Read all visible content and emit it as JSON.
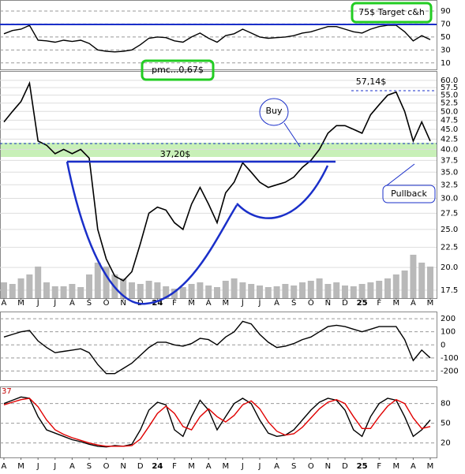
{
  "chart_data": [
    {
      "type": "line",
      "annotation": "75$ Target c&h",
      "color": "#000000",
      "x": [
        0,
        0.5,
        1,
        1.5,
        2,
        2.5,
        3,
        3.5,
        4,
        4.5,
        5,
        5.5,
        6,
        6.5,
        7,
        7.5,
        8,
        8.5,
        9,
        9.5,
        10,
        10.5,
        11,
        11.5,
        12,
        12.5,
        13,
        13.5,
        14,
        14.5,
        15,
        15.5,
        16,
        16.5,
        17,
        17.5,
        18,
        18.5,
        19,
        19.5,
        20,
        20.5,
        21,
        21.5,
        22,
        22.5,
        23,
        23.5,
        24,
        24.5,
        25
      ],
      "values": [
        55,
        60,
        62,
        68,
        45,
        44,
        42,
        45,
        43,
        45,
        40,
        30,
        28,
        27,
        28,
        30,
        38,
        48,
        50,
        49,
        44,
        42,
        50,
        56,
        48,
        42,
        52,
        55,
        62,
        56,
        50,
        48,
        49,
        50,
        52,
        56,
        58,
        62,
        66,
        66,
        62,
        58,
        56,
        62,
        66,
        68,
        68,
        58,
        44,
        52,
        46
      ],
      "xlim": [
        -0.23,
        25.37
      ],
      "ylim": [
        0,
        107
      ],
      "yticks": [
        90,
        70,
        50,
        30,
        10
      ]
    },
    {
      "type": "line",
      "log": true,
      "grid": true,
      "color": "#000000",
      "volume_color": "#b9b9b9",
      "annotations": [
        "pmc...0,67$",
        "Buy",
        "37,20$",
        "57,14$",
        "Pullback"
      ],
      "x": [
        0,
        0.5,
        1,
        1.5,
        2,
        2.5,
        3,
        3.5,
        4,
        4.5,
        5,
        5.5,
        6,
        6.5,
        7,
        7.5,
        8,
        8.5,
        9,
        9.5,
        10,
        10.5,
        11,
        11.5,
        12,
        12.5,
        13,
        13.5,
        14,
        14.5,
        15,
        15.5,
        16,
        16.5,
        17,
        17.5,
        18,
        18.5,
        19,
        19.5,
        20,
        20.5,
        21,
        21.5,
        22,
        22.5,
        23,
        23.5,
        24,
        24.5,
        25
      ],
      "values": [
        47,
        50,
        53,
        59,
        42,
        41,
        39,
        40,
        39,
        40,
        38,
        25,
        21,
        19,
        18.5,
        19.5,
        23,
        27.5,
        28.5,
        28,
        26,
        25,
        29,
        32,
        29,
        26,
        31,
        33,
        37,
        35,
        33,
        32,
        32.5,
        33,
        34,
        36,
        37.5,
        40,
        44,
        46,
        46,
        45,
        44,
        49,
        52,
        55,
        56,
        50,
        42,
        47,
        42
      ],
      "volume": [
        20,
        18,
        25,
        30,
        40,
        20,
        15,
        15,
        18,
        14,
        30,
        45,
        40,
        30,
        25,
        20,
        18,
        22,
        20,
        15,
        12,
        14,
        18,
        20,
        16,
        14,
        22,
        25,
        20,
        18,
        16,
        14,
        15,
        18,
        16,
        20,
        22,
        25,
        18,
        20,
        16,
        15,
        18,
        20,
        22,
        25,
        30,
        35,
        55,
        45,
        40
      ],
      "xlim": [
        -0.23,
        25.37
      ],
      "ylim": [
        16.7,
        63.4
      ],
      "yticks": [
        {
          "value": 60,
          "label": "60.0"
        },
        57.5,
        {
          "value": 55,
          "label": "55.0"
        },
        52.5,
        {
          "value": 50,
          "label": "50.0"
        },
        47.5,
        {
          "value": 45,
          "label": "45.0"
        },
        42.5,
        {
          "value": 40,
          "label": "40.0"
        },
        37.5,
        {
          "value": 35,
          "label": "35.0"
        },
        32.5,
        {
          "value": 30,
          "label": "30.0"
        },
        27.5,
        {
          "value": 25,
          "label": "25.0"
        },
        22.5,
        {
          "value": 20,
          "label": "20.0"
        },
        17.5
      ],
      "xticks": [
        {
          "value": 0,
          "label": "A"
        },
        {
          "value": 1,
          "label": "M"
        },
        {
          "value": 2,
          "label": "J"
        },
        {
          "value": 3,
          "label": "J"
        },
        {
          "value": 4,
          "label": "A"
        },
        {
          "value": 5,
          "label": "S"
        },
        {
          "value": 6,
          "label": "O"
        },
        {
          "value": 7,
          "label": "N"
        },
        {
          "value": 8,
          "label": "D"
        },
        {
          "value": 9,
          "label": "24"
        },
        {
          "value": 10,
          "label": "F"
        },
        {
          "value": 11,
          "label": "M"
        },
        {
          "value": 12,
          "label": "A"
        },
        {
          "value": 13,
          "label": "M"
        },
        {
          "value": 14,
          "label": "J"
        },
        {
          "value": 15,
          "label": "J"
        },
        {
          "value": 16,
          "label": "A"
        },
        {
          "value": 17,
          "label": "S"
        },
        {
          "value": 18,
          "label": "O"
        },
        {
          "value": 19,
          "label": "N"
        },
        {
          "value": 20,
          "label": "D"
        },
        {
          "value": 21,
          "label": "25"
        },
        {
          "value": 22,
          "label": "F"
        },
        {
          "value": 23,
          "label": "M"
        },
        {
          "value": 24,
          "label": "A"
        },
        {
          "value": 25,
          "label": "M"
        }
      ]
    },
    {
      "type": "line",
      "color": "#000000",
      "x": [
        0,
        0.5,
        1,
        1.5,
        2,
        2.5,
        3,
        3.5,
        4,
        4.5,
        5,
        5.5,
        6,
        6.5,
        7,
        7.5,
        8,
        8.5,
        9,
        9.5,
        10,
        10.5,
        11,
        11.5,
        12,
        12.5,
        13,
        13.5,
        14,
        14.5,
        15,
        15.5,
        16,
        16.5,
        17,
        17.5,
        18,
        18.5,
        19,
        19.5,
        20,
        20.5,
        21,
        21.5,
        22,
        22.5,
        23,
        23.5,
        24,
        24.5,
        25
      ],
      "values": [
        60,
        80,
        100,
        110,
        30,
        -20,
        -60,
        -50,
        -40,
        -30,
        -60,
        -150,
        -220,
        -220,
        -180,
        -140,
        -80,
        -20,
        20,
        20,
        0,
        -10,
        10,
        50,
        40,
        0,
        60,
        100,
        180,
        160,
        80,
        20,
        -20,
        -10,
        10,
        40,
        60,
        100,
        140,
        150,
        140,
        120,
        100,
        120,
        140,
        140,
        140,
        40,
        -120,
        -40,
        -100
      ],
      "xlim": [
        -0.23,
        25.37
      ],
      "ylim": [
        -270,
        255
      ],
      "yticks": [
        200,
        100,
        0,
        -100,
        -200
      ]
    },
    {
      "type": "line",
      "annotation": "37",
      "x": [
        0,
        0.5,
        1,
        1.5,
        2,
        2.5,
        3,
        3.5,
        4,
        4.5,
        5,
        5.5,
        6,
        6.5,
        7,
        7.5,
        8,
        8.5,
        9,
        9.5,
        10,
        10.5,
        11,
        11.5,
        12,
        12.5,
        13,
        13.5,
        14,
        14.5,
        15,
        15.5,
        16,
        16.5,
        17,
        17.5,
        18,
        18.5,
        19,
        19.5,
        20,
        20.5,
        21,
        21.5,
        22,
        22.5,
        23,
        23.5,
        24,
        24.5,
        25
      ],
      "series": [
        {
          "color": "#000000",
          "values": [
            80,
            85,
            90,
            88,
            60,
            40,
            35,
            30,
            25,
            22,
            18,
            15,
            14,
            16,
            15,
            18,
            40,
            70,
            82,
            78,
            40,
            30,
            60,
            85,
            70,
            40,
            60,
            80,
            88,
            80,
            55,
            35,
            30,
            32,
            40,
            55,
            70,
            82,
            88,
            85,
            70,
            40,
            30,
            60,
            80,
            88,
            85,
            60,
            30,
            40,
            55
          ]
        },
        {
          "color": "#e00000",
          "values": [
            78,
            82,
            86,
            88,
            75,
            55,
            40,
            33,
            28,
            24,
            20,
            17,
            15,
            15,
            15,
            16,
            26,
            45,
            65,
            76,
            65,
            45,
            40,
            60,
            72,
            60,
            52,
            62,
            78,
            84,
            72,
            52,
            38,
            32,
            34,
            44,
            58,
            72,
            82,
            86,
            80,
            60,
            42,
            42,
            60,
            76,
            86,
            80,
            58,
            42,
            45
          ]
        }
      ],
      "xlim": [
        -0.23,
        25.37
      ],
      "ylim": [
        -2,
        106
      ],
      "yticks": [
        80,
        50,
        20
      ],
      "xticks": [
        {
          "value": 0,
          "label": "A"
        },
        {
          "value": 1,
          "label": "M"
        },
        {
          "value": 2,
          "label": "J"
        },
        {
          "value": 3,
          "label": "J"
        },
        {
          "value": 4,
          "label": "A"
        },
        {
          "value": 5,
          "label": "S"
        },
        {
          "value": 6,
          "label": "O"
        },
        {
          "value": 7,
          "label": "N"
        },
        {
          "value": 8,
          "label": "D"
        },
        {
          "value": 9,
          "label": "24"
        },
        {
          "value": 10,
          "label": "F"
        },
        {
          "value": 11,
          "label": "M"
        },
        {
          "value": 12,
          "label": "A"
        },
        {
          "value": 13,
          "label": "M"
        },
        {
          "value": 14,
          "label": "J"
        },
        {
          "value": 15,
          "label": "J"
        },
        {
          "value": 16,
          "label": "A"
        },
        {
          "value": 17,
          "label": "S"
        },
        {
          "value": 18,
          "label": "O"
        },
        {
          "value": 19,
          "label": "N"
        },
        {
          "value": 20,
          "label": "D"
        },
        {
          "value": 21,
          "label": "25"
        },
        {
          "value": 22,
          "label": "F"
        },
        {
          "value": 23,
          "label": "M"
        },
        {
          "value": 24,
          "label": "A"
        },
        {
          "value": 25,
          "label": "M"
        }
      ]
    }
  ]
}
